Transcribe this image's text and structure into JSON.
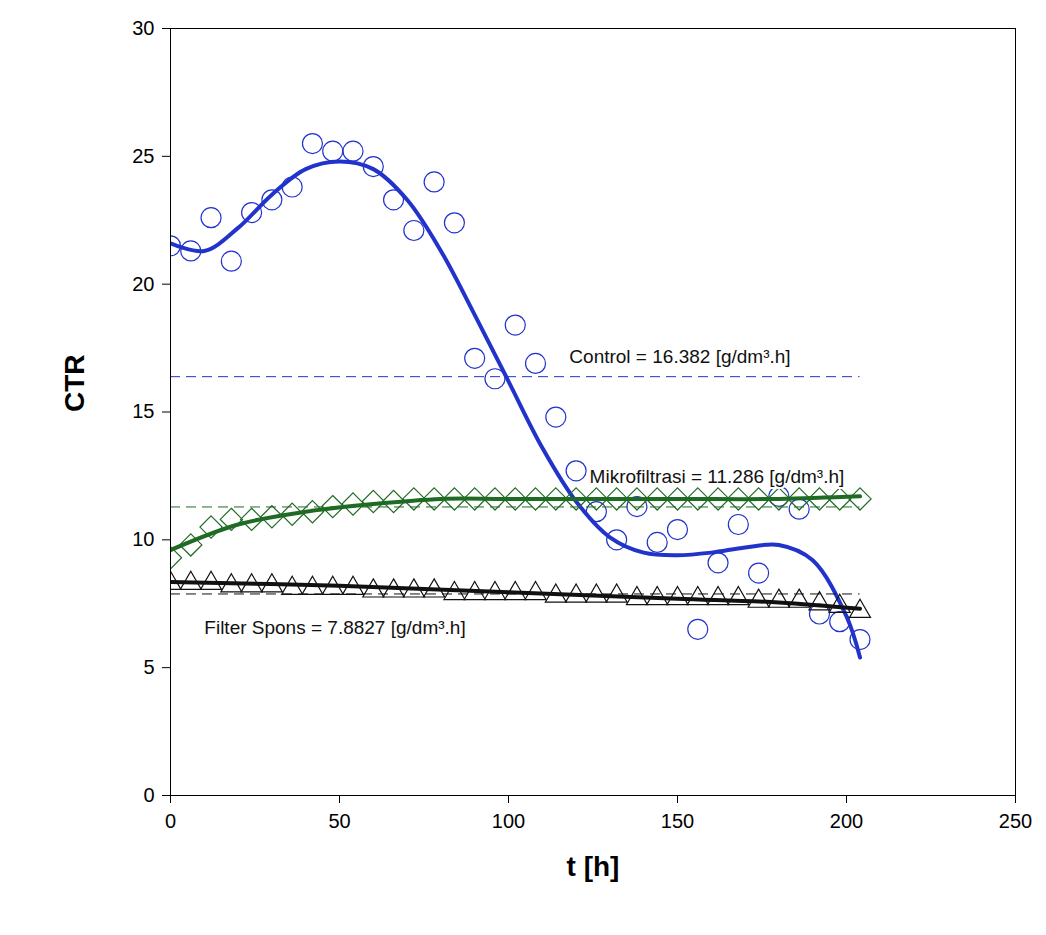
{
  "chart_data": {
    "type": "scatter",
    "x_label": "t [h]",
    "y_label": "CTR",
    "xlim": [
      0,
      250
    ],
    "xticks": [
      0,
      50,
      100,
      150,
      200,
      250
    ],
    "ylim": [
      0,
      30
    ],
    "yticks": [
      0,
      5,
      10,
      15,
      20,
      25,
      30
    ],
    "grid": false,
    "x": [
      0,
      6,
      12,
      18,
      24,
      30,
      36,
      42,
      48,
      54,
      60,
      66,
      72,
      78,
      84,
      90,
      96,
      102,
      108,
      114,
      120,
      126,
      132,
      138,
      144,
      150,
      156,
      162,
      168,
      174,
      180,
      186,
      192,
      198,
      204
    ],
    "series": [
      {
        "name": "Control",
        "color": "#2233cc",
        "marker": "circle",
        "line_style": "dashed",
        "mean": 16.382,
        "annotation": "Control = 16.382 [g/dm³.h]",
        "values": [
          21.5,
          21.3,
          22.6,
          20.9,
          22.8,
          23.3,
          23.8,
          25.5,
          25.2,
          25.2,
          24.6,
          23.3,
          22.1,
          24.0,
          22.4,
          17.1,
          16.3,
          18.4,
          16.9,
          14.8,
          12.7,
          11.1,
          10.0,
          11.3,
          9.9,
          10.4,
          6.5,
          9.1,
          10.6,
          8.7,
          11.7,
          11.2,
          7.1,
          6.8,
          6.1
        ],
        "fit_x": [
          0,
          10,
          20,
          30,
          40,
          50,
          60,
          70,
          80,
          90,
          100,
          110,
          120,
          130,
          140,
          150,
          160,
          170,
          180,
          190,
          200,
          204
        ],
        "fit_values": [
          21.6,
          21.3,
          22.2,
          23.5,
          24.5,
          24.8,
          24.5,
          23.3,
          21.3,
          18.8,
          16.2,
          13.6,
          11.5,
          10.1,
          9.5,
          9.4,
          9.5,
          9.7,
          9.8,
          9.2,
          7.0,
          5.4
        ]
      },
      {
        "name": "Mikrofiltrasi",
        "color": "#1f6b24",
        "marker": "diamond",
        "line_style": "dashed",
        "mean": 11.286,
        "annotation": "Mikrofiltrasi = 11.286 [g/dm³.h]",
        "values": [
          9.3,
          9.8,
          10.5,
          10.8,
          10.8,
          10.9,
          11.0,
          11.1,
          11.3,
          11.4,
          11.5,
          11.5,
          11.6,
          11.6,
          11.6,
          11.6,
          11.6,
          11.6,
          11.6,
          11.6,
          11.6,
          11.6,
          11.6,
          11.6,
          11.6,
          11.6,
          11.6,
          11.6,
          11.6,
          11.6,
          11.6,
          11.6,
          11.6,
          11.6,
          11.6
        ],
        "fit_x": [
          0,
          20,
          40,
          60,
          80,
          100,
          150,
          180,
          204
        ],
        "fit_values": [
          9.6,
          10.6,
          11.1,
          11.4,
          11.6,
          11.6,
          11.6,
          11.6,
          11.7
        ]
      },
      {
        "name": "Filter Spons",
        "color": "#111111",
        "marker": "triangle",
        "line_style": "dashed",
        "mean": 7.8827,
        "annotation": "Filter Spons = 7.8827 [g/dm³.h]",
        "values": [
          8.3,
          8.3,
          8.3,
          8.2,
          8.2,
          8.2,
          8.1,
          8.1,
          8.1,
          8.1,
          8.0,
          8.0,
          8.0,
          8.0,
          7.9,
          7.9,
          7.9,
          7.9,
          7.9,
          7.8,
          7.8,
          7.8,
          7.8,
          7.7,
          7.7,
          7.7,
          7.7,
          7.7,
          7.7,
          7.6,
          7.6,
          7.6,
          7.5,
          7.4,
          7.2
        ],
        "fit_x": [
          0,
          50,
          100,
          150,
          180,
          204
        ],
        "fit_values": [
          8.35,
          8.2,
          7.95,
          7.7,
          7.55,
          7.3
        ]
      }
    ]
  }
}
